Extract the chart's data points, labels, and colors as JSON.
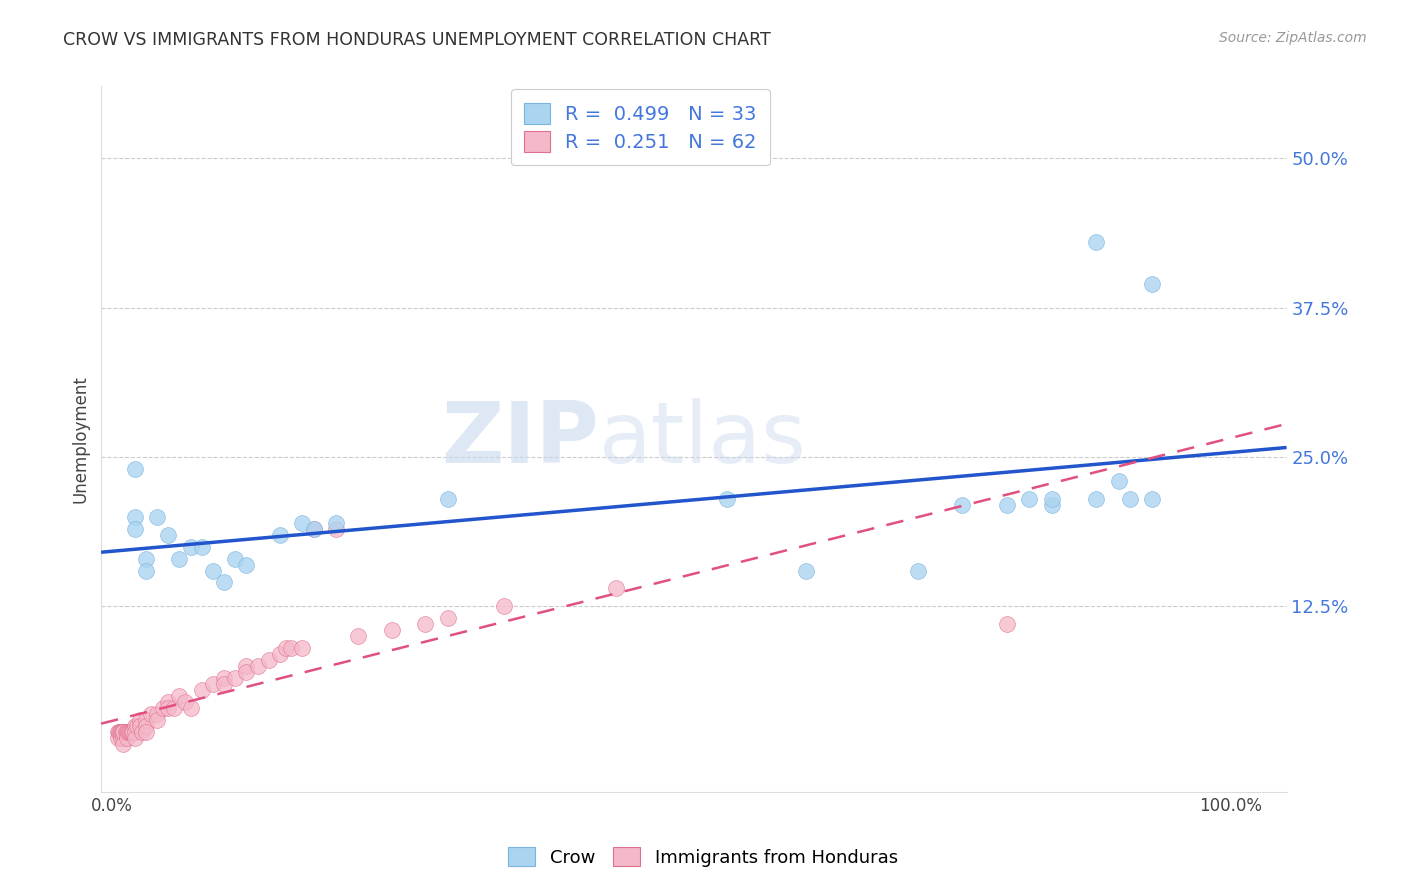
{
  "title": "CROW VS IMMIGRANTS FROM HONDURAS UNEMPLOYMENT CORRELATION CHART",
  "source": "Source: ZipAtlas.com",
  "ylabel": "Unemployment",
  "yticks": [
    "12.5%",
    "25.0%",
    "37.5%",
    "50.0%"
  ],
  "ytick_vals": [
    0.125,
    0.25,
    0.375,
    0.5
  ],
  "ylim": [
    -0.03,
    0.56
  ],
  "xlim": [
    -0.01,
    1.05
  ],
  "crow_R": 0.499,
  "crow_N": 33,
  "honduras_R": 0.251,
  "honduras_N": 62,
  "crow_color": "#aad4f0",
  "crow_edge": "#7ab5e0",
  "honduras_color": "#f4b8c8",
  "honduras_edge": "#e07090",
  "line_crow_color": "#2255cc",
  "line_honduras_color": "#e05080",
  "watermark_zip": "ZIP",
  "watermark_atlas": "atlas",
  "crow_x": [
    0.02,
    0.02,
    0.02,
    0.03,
    0.03,
    0.04,
    0.05,
    0.06,
    0.07,
    0.08,
    0.09,
    0.1,
    0.11,
    0.12,
    0.15,
    0.17,
    0.18,
    0.2,
    0.3,
    0.55,
    0.62,
    0.72,
    0.76,
    0.8,
    0.82,
    0.84,
    0.88,
    0.9,
    0.91,
    0.93,
    0.84,
    0.88,
    0.93
  ],
  "crow_y": [
    0.2,
    0.24,
    0.19,
    0.165,
    0.155,
    0.2,
    0.185,
    0.165,
    0.175,
    0.175,
    0.155,
    0.145,
    0.165,
    0.16,
    0.185,
    0.195,
    0.19,
    0.195,
    0.215,
    0.215,
    0.155,
    0.155,
    0.21,
    0.21,
    0.215,
    0.21,
    0.215,
    0.23,
    0.215,
    0.215,
    0.215,
    0.43,
    0.395
  ],
  "honduras_x": [
    0.005,
    0.005,
    0.006,
    0.007,
    0.008,
    0.008,
    0.009,
    0.01,
    0.01,
    0.01,
    0.01,
    0.012,
    0.013,
    0.013,
    0.014,
    0.015,
    0.016,
    0.017,
    0.018,
    0.019,
    0.02,
    0.02,
    0.02,
    0.022,
    0.025,
    0.025,
    0.027,
    0.03,
    0.03,
    0.03,
    0.035,
    0.04,
    0.04,
    0.045,
    0.05,
    0.05,
    0.055,
    0.06,
    0.065,
    0.07,
    0.08,
    0.09,
    0.1,
    0.1,
    0.11,
    0.12,
    0.12,
    0.13,
    0.14,
    0.15,
    0.155,
    0.16,
    0.17,
    0.18,
    0.2,
    0.22,
    0.25,
    0.28,
    0.3,
    0.35,
    0.45,
    0.8
  ],
  "honduras_y": [
    0.02,
    0.015,
    0.02,
    0.02,
    0.015,
    0.02,
    0.02,
    0.02,
    0.015,
    0.01,
    0.02,
    0.02,
    0.02,
    0.015,
    0.02,
    0.02,
    0.02,
    0.02,
    0.02,
    0.02,
    0.025,
    0.02,
    0.015,
    0.025,
    0.03,
    0.025,
    0.02,
    0.03,
    0.025,
    0.02,
    0.035,
    0.035,
    0.03,
    0.04,
    0.045,
    0.04,
    0.04,
    0.05,
    0.045,
    0.04,
    0.055,
    0.06,
    0.065,
    0.06,
    0.065,
    0.075,
    0.07,
    0.075,
    0.08,
    0.085,
    0.09,
    0.09,
    0.09,
    0.19,
    0.19,
    0.1,
    0.105,
    0.11,
    0.115,
    0.125,
    0.14,
    0.11
  ]
}
